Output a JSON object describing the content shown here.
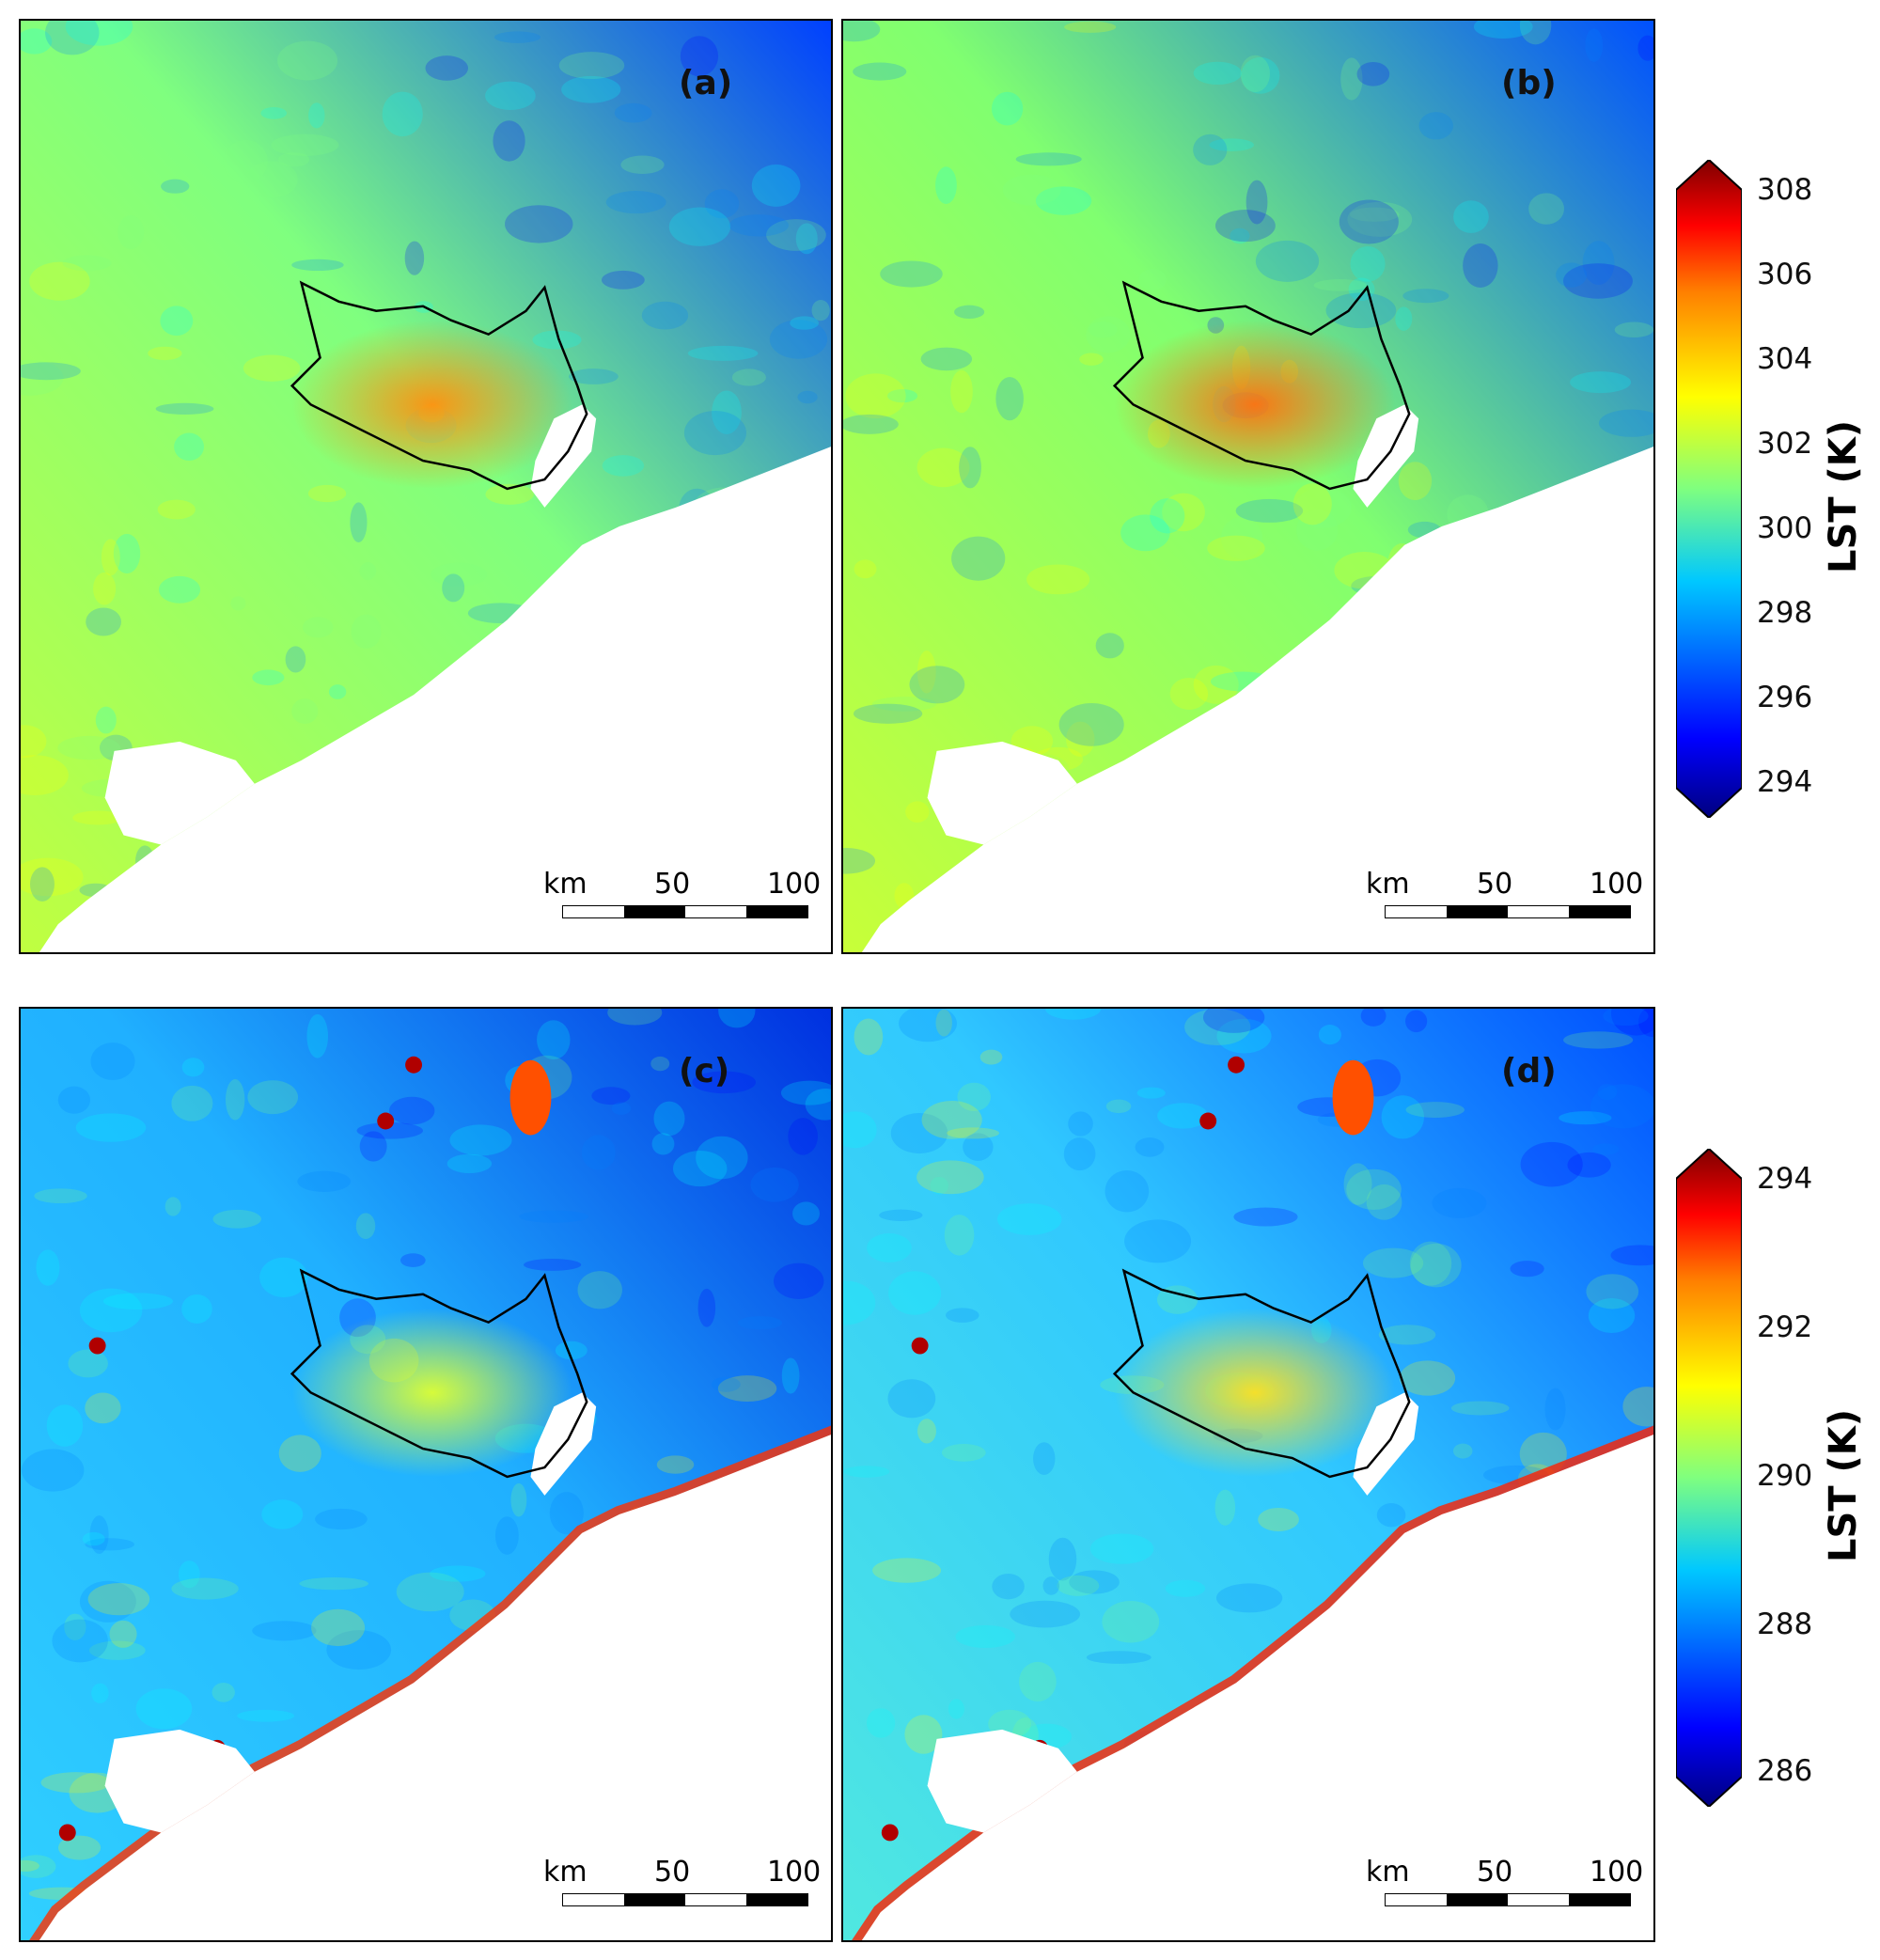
{
  "panels": [
    {
      "id": "a",
      "label": "(a)",
      "scheme": "warm"
    },
    {
      "id": "b",
      "label": "(b)",
      "scheme": "warm2"
    },
    {
      "id": "c",
      "label": "(c)",
      "scheme": "cool"
    },
    {
      "id": "d",
      "label": "(d)",
      "scheme": "cool2"
    }
  ],
  "scalebar": {
    "km": "km",
    "mid": "50",
    "end": "100"
  },
  "colorbars": [
    {
      "title": "LST (K)",
      "ticks": [
        "308",
        "306",
        "304",
        "302",
        "300",
        "298",
        "296",
        "294"
      ]
    },
    {
      "title": "LST (K)",
      "ticks": [
        "294",
        "292",
        "290",
        "288",
        "286"
      ]
    }
  ],
  "colormap": [
    "#00007f",
    "#0000ff",
    "#007fff",
    "#00ffff",
    "#7fff7f",
    "#ffff00",
    "#ff7f00",
    "#ff0000",
    "#7f0000"
  ]
}
